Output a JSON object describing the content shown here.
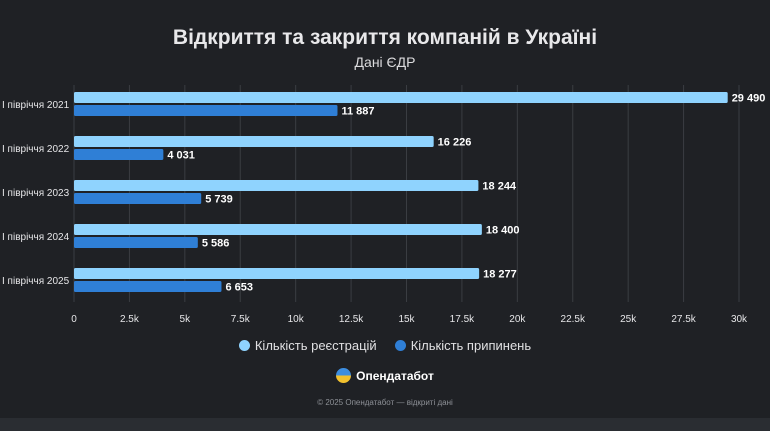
{
  "chart_data": {
    "type": "bar",
    "orientation": "horizontal",
    "title": "Відкриття та закриття компаній в Україні",
    "subtitle": "Дані ЄДР",
    "categories": [
      "I півріччя 2021",
      "I півріччя 2022",
      "I півріччя 2023",
      "I півріччя 2024",
      "I півріччя 2025"
    ],
    "series": [
      {
        "name": "Кількість реєстрацій",
        "color": "#8fd3fe",
        "values": [
          29490,
          16226,
          18244,
          18400,
          18277
        ],
        "labels": [
          "29 490",
          "16 226",
          "18 244",
          "18 400",
          "18 277"
        ]
      },
      {
        "name": "Кількість припинень",
        "color": "#2f7fd6",
        "values": [
          11887,
          4031,
          5739,
          5586,
          6653
        ],
        "labels": [
          "11 887",
          "4 031",
          "5 739",
          "5 586",
          "6 653"
        ]
      }
    ],
    "xlim": [
      0,
      30000
    ],
    "xticks": [
      "0",
      "2.5k",
      "5k",
      "7.5k",
      "10k",
      "12.5k",
      "15k",
      "17.5k",
      "20k",
      "22.5k",
      "25k",
      "27.5k",
      "30k"
    ],
    "grid": true,
    "legend": "bottom"
  },
  "brand": "Опендатабот",
  "copyright": "© 2025 Опендатабот — відкриті дані"
}
